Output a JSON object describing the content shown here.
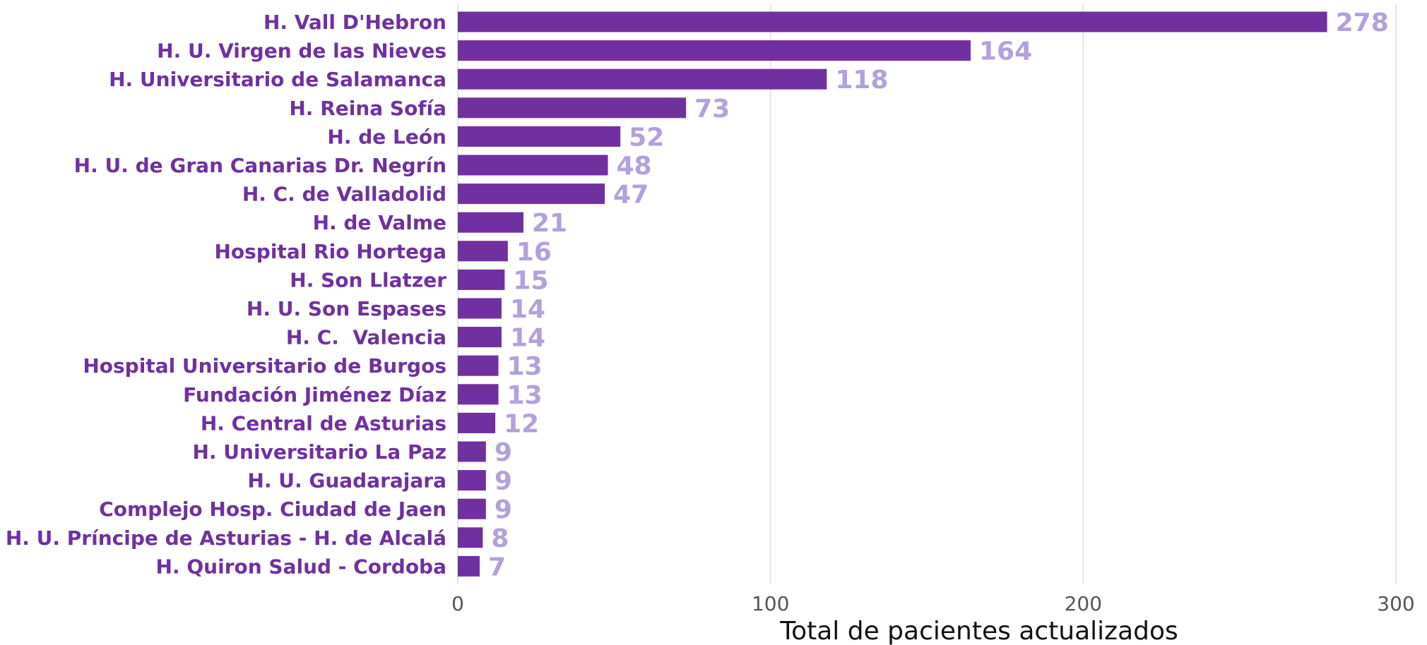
{
  "chart_data": {
    "type": "bar",
    "orientation": "horizontal",
    "title": "",
    "xlabel": "Total de pacientes actualizados",
    "ylabel": "",
    "xlim": [
      0,
      300
    ],
    "xticks": [
      0,
      100,
      200,
      300
    ],
    "grid": "vertical",
    "legend": "none",
    "categories": [
      "H. Vall D'Hebron",
      "H. U. Virgen de las Nieves",
      "H. Universitario de Salamanca",
      "H. Reina Sofía",
      "H. de León",
      "H. U. de Gran Canarias Dr. Negrín",
      "H. C. de Valladolid",
      "H. de Valme",
      "Hospital Rio Hortega",
      "H. Son Llatzer",
      "H. U. Son Espases",
      "H. C.  Valencia",
      "Hospital Universitario de Burgos",
      "Fundación Jiménez Díaz",
      "H. Central de Asturias",
      "H. Universitario La Paz",
      "H. U. Guadarajara",
      "Complejo Hosp. Ciudad de Jaen",
      "H. U. Príncipe de Asturias - H. de Alcalá",
      "H. Quiron Salud - Cordoba"
    ],
    "values": [
      278,
      164,
      118,
      73,
      52,
      48,
      47,
      21,
      16,
      15,
      14,
      14,
      13,
      13,
      12,
      9,
      9,
      9,
      8,
      7
    ],
    "colors": {
      "bar": "#7030a0",
      "category_label": "#7030a0",
      "value_label": "#b3a0dc",
      "tick_label": "#555555",
      "axis_title": "#111111",
      "grid": "#e6e6e6"
    }
  }
}
